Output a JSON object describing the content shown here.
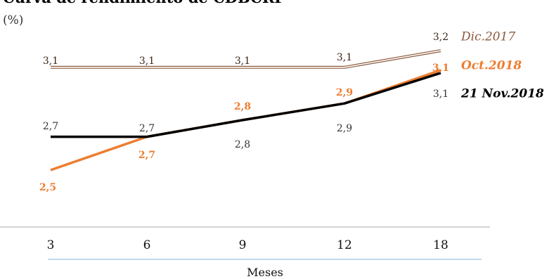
{
  "chart_data": {
    "type": "line",
    "title": "Curva de rendimiento de CDBCRP",
    "unit": "(%)",
    "xlabel": "Meses",
    "categories": [
      "3",
      "6",
      "9",
      "12",
      "18"
    ],
    "ylim": [
      2.2,
      3.4
    ],
    "legend_placement": "right",
    "series": [
      {
        "name": "Dic.2017",
        "values": [
          3.1,
          3.1,
          3.1,
          3.1,
          3.2
        ],
        "labels": [
          "3,1",
          "3,1",
          "3,1",
          "3,1",
          "3,2"
        ],
        "color": "#8B5A3C",
        "style": "double-line"
      },
      {
        "name": "Oct.2018",
        "values": [
          2.5,
          2.7,
          2.8,
          2.9,
          3.1
        ],
        "labels": [
          "2,5",
          "2,7",
          "2,8",
          "2,9",
          "3,1"
        ],
        "color": "#ED7D31",
        "style": "solid-bold"
      },
      {
        "name": "21 Nov.2018",
        "values": [
          2.7,
          2.7,
          2.8,
          2.9,
          3.1
        ],
        "labels": [
          "2,7",
          "2,7",
          "2,8",
          "2,9",
          "3,1"
        ],
        "color": "#000000",
        "style": "solid-bold"
      }
    ]
  }
}
